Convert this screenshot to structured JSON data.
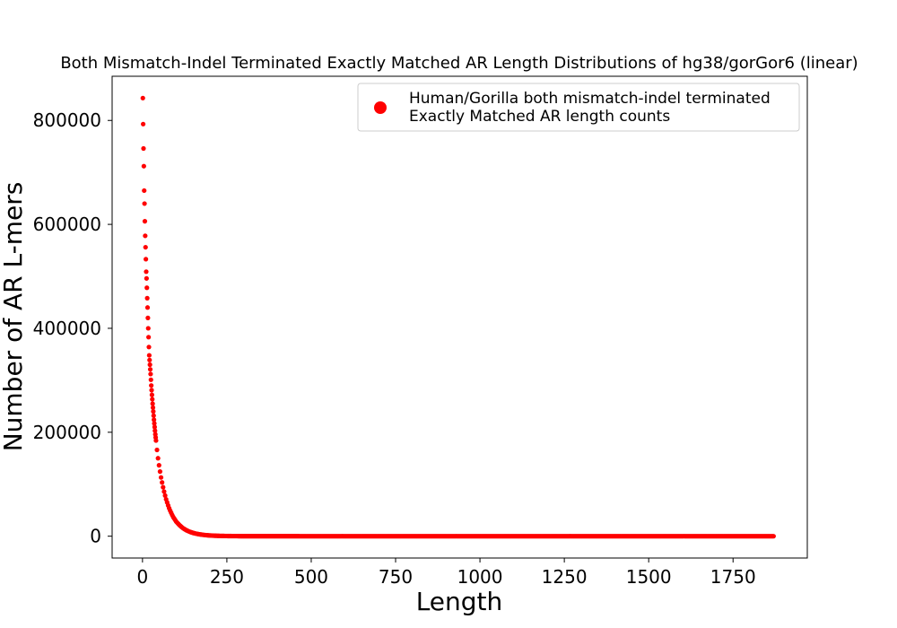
{
  "chart_data": {
    "type": "scatter",
    "title": "Both Mismatch-Indel Terminated Exactly Matched AR Length Distributions of hg38/gorGor6 (linear)",
    "xlabel": "Length",
    "ylabel": "Number of AR L-mers",
    "xlim": [
      -90,
      1970
    ],
    "ylim": [
      -42000,
      885000
    ],
    "xticks": [
      0,
      250,
      500,
      750,
      1000,
      1250,
      1500,
      1750
    ],
    "xtick_labels": [
      "0",
      "250",
      "500",
      "750",
      "1000",
      "1250",
      "1500",
      "1750"
    ],
    "yticks": [
      0,
      200000,
      400000,
      600000,
      800000
    ],
    "ytick_labels": [
      "0",
      "200000",
      "400000",
      "600000",
      "800000"
    ],
    "grid": false,
    "legend_position": "top-right",
    "series": [
      {
        "name": "Human/Gorilla both mismatch-indel terminated\n Exactly Matched AR length counts",
        "color": "#ff0000",
        "marker": "circle",
        "x": [
          1,
          2,
          3,
          4,
          5,
          6,
          7,
          8,
          9,
          10,
          11,
          12,
          13,
          14,
          15,
          16,
          17,
          18,
          19,
          20,
          22,
          24,
          26,
          28,
          30,
          32,
          34,
          36,
          38,
          40,
          43,
          46,
          50,
          55,
          60,
          65,
          70,
          75,
          80,
          90,
          100,
          110,
          120,
          130,
          140,
          150,
          160,
          170,
          180,
          190,
          200,
          220,
          240,
          260,
          280,
          300,
          350,
          400,
          450,
          500,
          600,
          700,
          800,
          900,
          1000,
          1100,
          1200,
          1300,
          1400,
          1500,
          1600,
          1700,
          1800,
          1870
        ],
        "y": [
          843000,
          793000,
          746000,
          712000,
          665000,
          640000,
          606000,
          578000,
          556000,
          533000,
          509000,
          496000,
          478000,
          458000,
          440000,
          420000,
          400000,
          383000,
          364000,
          348000,
          330000,
          312000,
          290000,
          272000,
          255000,
          240000,
          224000,
          210000,
          196000,
          184000,
          166000,
          150000,
          132000,
          113000,
          97000,
          83000,
          71000,
          61000,
          52000,
          38000,
          28000,
          21000,
          15500,
          11500,
          8500,
          6300,
          4700,
          3500,
          2600,
          1900,
          1400,
          800,
          450,
          260,
          150,
          90,
          40,
          20,
          10,
          5,
          3,
          2,
          1,
          1,
          1,
          1,
          1,
          1,
          1,
          1,
          1,
          1,
          1,
          1
        ]
      }
    ]
  }
}
